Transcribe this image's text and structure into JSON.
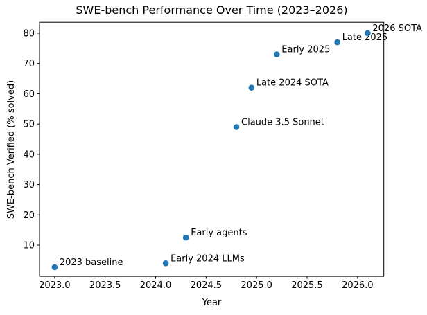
{
  "chart_data": {
    "type": "scatter",
    "title": "SWE-bench Performance Over Time (2023–2026)",
    "xlabel": "Year",
    "ylabel": "SWE-bench Verified (% solved)",
    "points": [
      {
        "x": 2023.0,
        "y": 2.7,
        "label": "2023 baseline"
      },
      {
        "x": 2024.1,
        "y": 4.0,
        "label": "Early 2024 LLMs"
      },
      {
        "x": 2024.3,
        "y": 12.5,
        "label": "Early agents"
      },
      {
        "x": 2024.8,
        "y": 49.0,
        "label": "Claude 3.5 Sonnet"
      },
      {
        "x": 2024.95,
        "y": 62.0,
        "label": "Late 2024 SOTA"
      },
      {
        "x": 2025.2,
        "y": 73.0,
        "label": "Early 2025"
      },
      {
        "x": 2025.8,
        "y": 77.0,
        "label": "Late 2025"
      },
      {
        "x": 2026.1,
        "y": 80.0,
        "label": "2026 SOTA"
      }
    ],
    "xticks": [
      2023.0,
      2023.5,
      2024.0,
      2024.5,
      2025.0,
      2025.5,
      2026.0
    ],
    "yticks": [
      10,
      20,
      30,
      40,
      50,
      60,
      70,
      80
    ],
    "xlim": [
      2022.85,
      2026.26
    ],
    "ylim": [
      -0.3,
      83.6
    ],
    "marker_color": "#1f77b4",
    "axis_color": "#000000",
    "grid": false,
    "legend_position": "none"
  }
}
